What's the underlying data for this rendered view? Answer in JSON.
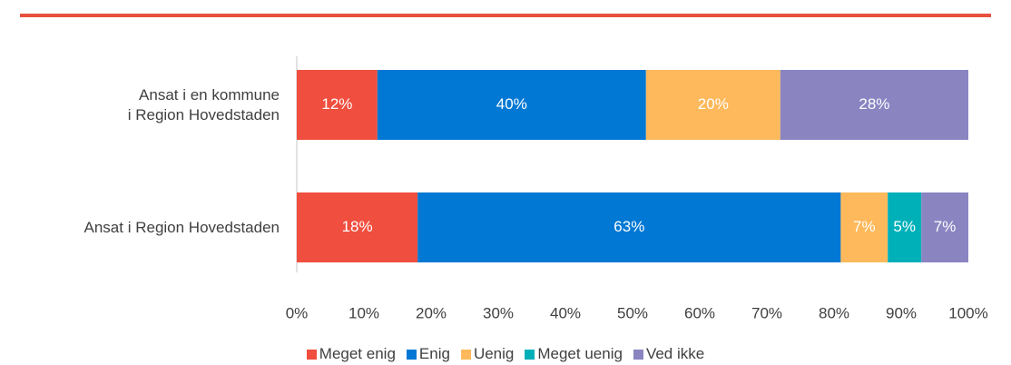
{
  "chart_data": {
    "type": "stacked-bar-horizontal",
    "categories": [
      "Ansat i en kommune\ni Region Hovedstaden",
      "Ansat i Region Hovedstaden"
    ],
    "series": [
      {
        "name": "Meget enig",
        "color": "#f04e3e",
        "values": [
          12,
          18
        ],
        "value_labels": [
          "12%",
          "18%"
        ]
      },
      {
        "name": "Enig",
        "color": "#0078d4",
        "values": [
          40,
          63
        ],
        "value_labels": [
          "40%",
          "63%"
        ]
      },
      {
        "name": "Uenig",
        "color": "#fdb95b",
        "values": [
          20,
          7
        ],
        "value_labels": [
          "20%",
          "7%"
        ]
      },
      {
        "name": "Meget uenig",
        "color": "#00b0b9",
        "values": [
          null,
          5
        ],
        "value_labels": [
          null,
          "5%"
        ]
      },
      {
        "name": "Ved ikke",
        "color": "#8a84c1",
        "values": [
          28,
          7
        ],
        "value_labels": [
          "28%",
          "7%"
        ]
      }
    ],
    "xlim": [
      0,
      100
    ],
    "xticks": [
      {
        "value": 0,
        "label": "0%"
      },
      {
        "value": 10,
        "label": "10%"
      },
      {
        "value": 20,
        "label": "20%"
      },
      {
        "value": 30,
        "label": "30%"
      },
      {
        "value": 40,
        "label": "40%"
      },
      {
        "value": 50,
        "label": "50%"
      },
      {
        "value": 60,
        "label": "60%"
      },
      {
        "value": 70,
        "label": "70%"
      },
      {
        "value": 80,
        "label": "80%"
      },
      {
        "value": 90,
        "label": "90%"
      },
      {
        "value": 100,
        "label": "100%"
      }
    ],
    "legend": "bottom"
  }
}
